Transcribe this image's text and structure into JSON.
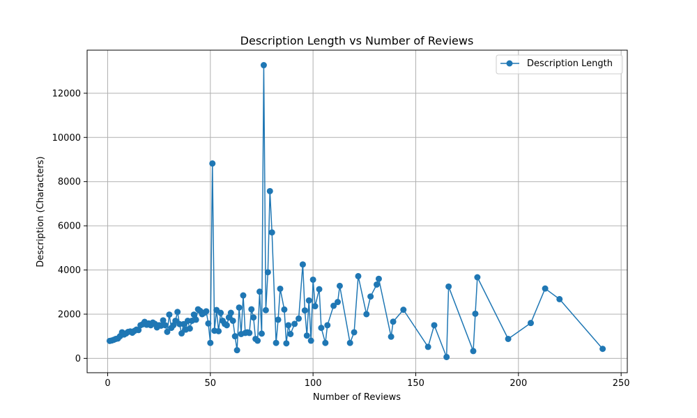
{
  "chart_data": {
    "type": "line",
    "title": "Description Length vs Number of Reviews",
    "xlabel": "Number of Reviews",
    "ylabel": "Description (Characters)",
    "xlim": [
      -10,
      253
    ],
    "ylim": [
      -650,
      13950
    ],
    "xticks": [
      0,
      50,
      100,
      150,
      200,
      250
    ],
    "yticks": [
      0,
      2000,
      4000,
      6000,
      8000,
      10000,
      12000
    ],
    "grid": true,
    "legend_position": "top-right",
    "colors": {
      "series": "#1f77b4",
      "grid": "#b0b0b0"
    },
    "series": [
      {
        "name": "Description Length",
        "marker": "circle",
        "points": [
          [
            1,
            790
          ],
          [
            2,
            810
          ],
          [
            3,
            840
          ],
          [
            4,
            880
          ],
          [
            5,
            900
          ],
          [
            6,
            1000
          ],
          [
            7,
            1180
          ],
          [
            8,
            1080
          ],
          [
            9,
            1130
          ],
          [
            10,
            1200
          ],
          [
            11,
            1220
          ],
          [
            12,
            1160
          ],
          [
            13,
            1240
          ],
          [
            14,
            1300
          ],
          [
            15,
            1280
          ],
          [
            16,
            1500
          ],
          [
            17,
            1540
          ],
          [
            18,
            1650
          ],
          [
            19,
            1520
          ],
          [
            20,
            1580
          ],
          [
            21,
            1500
          ],
          [
            22,
            1620
          ],
          [
            23,
            1560
          ],
          [
            24,
            1400
          ],
          [
            25,
            1500
          ],
          [
            26,
            1480
          ],
          [
            27,
            1720
          ],
          [
            28,
            1500
          ],
          [
            29,
            1200
          ],
          [
            30,
            1980
          ],
          [
            31,
            1380
          ],
          [
            32,
            1500
          ],
          [
            33,
            1700
          ],
          [
            34,
            2100
          ],
          [
            35,
            1550
          ],
          [
            36,
            1130
          ],
          [
            37,
            1550
          ],
          [
            38,
            1300
          ],
          [
            39,
            1700
          ],
          [
            40,
            1350
          ],
          [
            41,
            1700
          ],
          [
            42,
            1980
          ],
          [
            43,
            1750
          ],
          [
            44,
            2220
          ],
          [
            45,
            2150
          ],
          [
            46,
            2000
          ],
          [
            47,
            2060
          ],
          [
            48,
            2130
          ],
          [
            49,
            1580
          ],
          [
            50,
            700
          ],
          [
            51,
            8820
          ],
          [
            52,
            1250
          ],
          [
            53,
            2190
          ],
          [
            54,
            1230
          ],
          [
            55,
            2060
          ],
          [
            56,
            1700
          ],
          [
            57,
            1560
          ],
          [
            58,
            1500
          ],
          [
            59,
            1850
          ],
          [
            60,
            2060
          ],
          [
            61,
            1700
          ],
          [
            62,
            1000
          ],
          [
            63,
            370
          ],
          [
            64,
            2300
          ],
          [
            65,
            1100
          ],
          [
            66,
            2850
          ],
          [
            67,
            1150
          ],
          [
            68,
            1180
          ],
          [
            69,
            1150
          ],
          [
            70,
            2220
          ],
          [
            71,
            1850
          ],
          [
            72,
            880
          ],
          [
            73,
            800
          ],
          [
            74,
            3020
          ],
          [
            75,
            1120
          ],
          [
            76,
            13270
          ],
          [
            77,
            2180
          ],
          [
            78,
            3900
          ],
          [
            79,
            7570
          ],
          [
            80,
            5700
          ],
          [
            82,
            700
          ],
          [
            83,
            1750
          ],
          [
            84,
            3150
          ],
          [
            86,
            2210
          ],
          [
            87,
            680
          ],
          [
            88,
            1500
          ],
          [
            89,
            1100
          ],
          [
            91,
            1560
          ],
          [
            93,
            1800
          ],
          [
            95,
            4250
          ],
          [
            96,
            2170
          ],
          [
            97,
            1030
          ],
          [
            98,
            2620
          ],
          [
            99,
            800
          ],
          [
            100,
            3560
          ],
          [
            101,
            2360
          ],
          [
            103,
            3130
          ],
          [
            104,
            1380
          ],
          [
            106,
            700
          ],
          [
            107,
            1500
          ],
          [
            110,
            2380
          ],
          [
            112,
            2550
          ],
          [
            113,
            3280
          ],
          [
            118,
            700
          ],
          [
            120,
            1180
          ],
          [
            122,
            3720
          ],
          [
            126,
            2000
          ],
          [
            128,
            2800
          ],
          [
            131,
            3340
          ],
          [
            132,
            3600
          ],
          [
            138,
            980
          ],
          [
            139,
            1660
          ],
          [
            144,
            2200
          ],
          [
            156,
            520
          ],
          [
            159,
            1500
          ],
          [
            165,
            60
          ],
          [
            166,
            3250
          ],
          [
            178,
            330
          ],
          [
            179,
            2020
          ],
          [
            180,
            3670
          ],
          [
            195,
            880
          ],
          [
            206,
            1600
          ],
          [
            213,
            3160
          ],
          [
            220,
            2680
          ],
          [
            241,
            430
          ]
        ]
      }
    ]
  }
}
